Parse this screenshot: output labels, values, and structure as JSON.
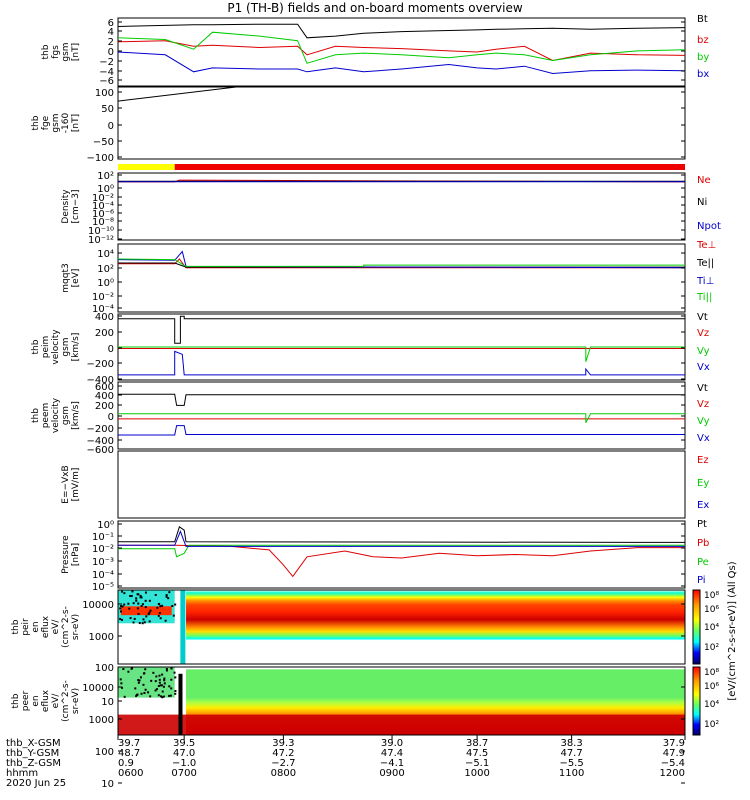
{
  "title": "P1  (TH-B) fields and on-board moments overview",
  "footer": {
    "rows": [
      {
        "label": "thb_X-GSM",
        "values": [
          "39.7",
          "39.5",
          "39.3",
          "39.0",
          "38.7",
          "38.3",
          "37.9"
        ]
      },
      {
        "label": "thb_Y-GSM",
        "values": [
          "48.7",
          "47.0",
          "47.2",
          "47.4",
          "47.5",
          "47.7",
          "47.9"
        ]
      },
      {
        "label": "thb_Z-GSM",
        "values": [
          "0.9",
          "−1.0",
          "−2.7",
          "−4.1",
          "−5.1",
          "−5.5",
          "−5.4"
        ]
      },
      {
        "label": "hhmm",
        "values": [
          "0600",
          "0700",
          "0800",
          "0900",
          "1000",
          "1100",
          "1200"
        ]
      }
    ],
    "date": "2020 Jun 25"
  },
  "chart_data": [
    {
      "type": "line",
      "ylabel": [
        "thb",
        "fgs",
        "gsm",
        "[nT]"
      ],
      "y_ticks": [
        "6",
        "4",
        "2",
        "0",
        "−2",
        "−4",
        "−6"
      ],
      "ylim": [
        -6,
        6
      ],
      "legend": [
        {
          "name": "Bt",
          "color": "#000000"
        },
        {
          "name": "bz",
          "color": "#dd0000"
        },
        {
          "name": "by",
          "color": "#00cc00"
        },
        {
          "name": "bx",
          "color": "#0000cc"
        }
      ],
      "x": [
        6.0,
        6.5,
        6.8,
        7.0,
        7.5,
        7.9,
        8.0,
        8.3,
        8.6,
        9.0,
        9.5,
        9.8,
        10.0,
        10.3,
        10.6,
        11.0,
        11.5,
        12.0
      ],
      "series": [
        {
          "name": "Bt",
          "color": "#000000",
          "values": [
            4.5,
            4.7,
            4.8,
            4.8,
            4.9,
            4.9,
            2.5,
            2.8,
            3.3,
            3.6,
            3.8,
            3.9,
            4.0,
            4.1,
            4.2,
            4.0,
            4.2,
            4.3
          ]
        },
        {
          "name": "bz",
          "color": "#dd0000",
          "values": [
            1.8,
            2.0,
            1.0,
            1.2,
            0.8,
            1.0,
            -0.5,
            1.0,
            0.8,
            0.6,
            0.2,
            0.0,
            0.5,
            1.0,
            -1.5,
            -0.2,
            -0.5,
            -0.6
          ]
        },
        {
          "name": "by",
          "color": "#00cc00",
          "values": [
            2.5,
            2.2,
            0.5,
            3.5,
            2.8,
            2.0,
            -2.0,
            -0.5,
            -0.2,
            -0.5,
            -1.0,
            -0.5,
            -0.2,
            -0.5,
            -1.5,
            -0.5,
            0.2,
            0.4
          ]
        },
        {
          "name": "bx",
          "color": "#0000cc",
          "values": [
            0.0,
            -0.5,
            -3.5,
            -2.8,
            -3.0,
            -3.0,
            -3.5,
            -2.8,
            -3.5,
            -3.0,
            -2.2,
            -2.8,
            -3.0,
            -2.5,
            -3.8,
            -3.3,
            -3.2,
            -3.3
          ]
        }
      ]
    },
    {
      "type": "line",
      "ylabel": [
        "thb",
        "fge",
        "gsm",
        "-160",
        "[nT]"
      ],
      "y_ticks": [
        "100",
        "50",
        "0",
        "−50",
        "−100"
      ],
      "ylim": [
        -130,
        100
      ],
      "series": [
        {
          "color": "#000000",
          "x": [
            6.0,
            7.25
          ],
          "values": [
            55,
            100
          ]
        }
      ]
    },
    {
      "type": "bar",
      "segments": [
        {
          "x0": 6.0,
          "x1": 6.6,
          "color": "#ffff00"
        },
        {
          "x0": 6.6,
          "x1": 12.0,
          "color": "#ee0000"
        }
      ]
    },
    {
      "type": "line",
      "ylabel": [
        "Density",
        "[cm−3]"
      ],
      "y_ticks": [
        "10²",
        "10⁰",
        "10⁻²",
        "10⁻⁴",
        "10⁻⁶",
        "10⁻⁸",
        "10⁻¹⁰",
        "10⁻¹²"
      ],
      "ylim": [
        -13,
        2
      ],
      "log_scale": true,
      "legend": [
        {
          "name": "Ne",
          "color": "#dd0000"
        },
        {
          "name": "Ni",
          "color": "#000000"
        },
        {
          "name": "Npot",
          "color": "#0000cc"
        }
      ],
      "series": [
        {
          "name": "Ne",
          "color": "#dd0000",
          "x": [
            6.0,
            6.6,
            6.65,
            12.0
          ],
          "values": [
            0.0,
            0.0,
            0.4,
            0.0
          ]
        },
        {
          "name": "Ni",
          "color": "#000000",
          "x": [
            6.0,
            12.0
          ],
          "values": [
            0.15,
            0.15
          ]
        },
        {
          "name": "Npot",
          "color": "#0000cc",
          "x": [
            6.0,
            12.0
          ],
          "values": [
            0.05,
            0.05
          ]
        }
      ]
    },
    {
      "type": "line",
      "ylabel": [
        "mqqt3",
        "[eV]"
      ],
      "y_ticks": [
        "10⁴",
        "10²",
        "10⁰",
        "10⁻²",
        "10⁻⁴"
      ],
      "ylim": [
        -5.5,
        4.5
      ],
      "log_scale": true,
      "legend": [
        {
          "name": "Te⊥",
          "color": "#dd0000"
        },
        {
          "name": "Te||",
          "color": "#000000"
        },
        {
          "name": "Ti⊥",
          "color": "#0000cc"
        },
        {
          "name": "Ti||",
          "color": "#00cc00"
        }
      ],
      "series": [
        {
          "name": "Te⊥",
          "color": "#dd0000",
          "x": [
            6.0,
            6.6,
            6.65,
            6.72,
            12.0
          ],
          "values": [
            1.6,
            1.6,
            2.3,
            1.0,
            1.0
          ]
        },
        {
          "name": "Te||",
          "color": "#000000",
          "x": [
            6.0,
            6.6,
            6.72,
            12.0
          ],
          "values": [
            1.7,
            1.7,
            1.1,
            1.1
          ]
        },
        {
          "name": "Ti⊥",
          "color": "#0000cc",
          "x": [
            6.0,
            6.6,
            6.68,
            6.72,
            12.0
          ],
          "values": [
            2.2,
            2.1,
            3.4,
            1.2,
            1.0
          ]
        },
        {
          "name": "Ti||",
          "color": "#00cc00",
          "x": [
            6.0,
            6.6,
            6.72,
            8.6,
            8.6,
            12.0
          ],
          "values": [
            2.3,
            2.2,
            1.2,
            1.2,
            1.4,
            1.4
          ]
        }
      ]
    },
    {
      "type": "line",
      "ylabel": [
        "thb",
        "peim",
        "velocity",
        "gsm",
        "[km/s]"
      ],
      "y_ticks": [
        "400",
        "200",
        "0",
        "−200",
        "−400"
      ],
      "ylim": [
        -450,
        450
      ],
      "legend": [
        {
          "name": "Vt",
          "color": "#000000"
        },
        {
          "name": "Vz",
          "color": "#dd0000"
        },
        {
          "name": "Vy",
          "color": "#00cc00"
        },
        {
          "name": "Vx",
          "color": "#0000cc"
        }
      ],
      "series": [
        {
          "name": "Vt",
          "color": "#000000",
          "x": [
            6.0,
            6.6,
            6.6,
            6.66,
            6.66,
            6.7,
            6.7,
            12.0
          ],
          "values": [
            385,
            385,
            50,
            50,
            420,
            420,
            385,
            385
          ]
        },
        {
          "name": "Vz",
          "color": "#dd0000",
          "x": [
            6.0,
            12.0
          ],
          "values": [
            -20,
            -20
          ]
        },
        {
          "name": "Vy",
          "color": "#00cc00",
          "x": [
            6.0,
            10.95,
            10.95,
            11.0,
            12.0
          ],
          "values": [
            0,
            0,
            -200,
            0,
            0
          ]
        },
        {
          "name": "Vx",
          "color": "#0000cc",
          "x": [
            6.0,
            6.6,
            6.6,
            6.68,
            6.7,
            10.95,
            10.95,
            11.0,
            12.0
          ],
          "values": [
            -380,
            -380,
            -60,
            -100,
            -380,
            -380,
            -300,
            -380,
            -380
          ]
        }
      ]
    },
    {
      "type": "line",
      "ylabel": [
        "thb",
        "peem",
        "velocity",
        "gsm",
        "[km/s]"
      ],
      "y_ticks": [
        "600",
        "400",
        "200",
        "0",
        "−200",
        "−400",
        "−600"
      ],
      "ylim": [
        -600,
        600
      ],
      "legend": [
        {
          "name": "Vt",
          "color": "#000000"
        },
        {
          "name": "Vz",
          "color": "#dd0000"
        },
        {
          "name": "Vy",
          "color": "#00cc00"
        },
        {
          "name": "Vx",
          "color": "#0000cc"
        }
      ],
      "series": [
        {
          "name": "Vt",
          "color": "#000000",
          "x": [
            6.0,
            6.6,
            6.62,
            6.7,
            6.72,
            12.0
          ],
          "values": [
            380,
            380,
            180,
            180,
            370,
            370
          ]
        },
        {
          "name": "Vz",
          "color": "#dd0000",
          "x": [
            6.0,
            12.0
          ],
          "values": [
            -60,
            -60
          ]
        },
        {
          "name": "Vy",
          "color": "#00cc00",
          "x": [
            6.0,
            10.95,
            10.95,
            11.0,
            12.0
          ],
          "values": [
            30,
            30,
            -130,
            30,
            30
          ]
        },
        {
          "name": "Vx",
          "color": "#0000cc",
          "x": [
            6.0,
            6.6,
            6.62,
            6.7,
            6.72,
            12.0
          ],
          "values": [
            -350,
            -350,
            -180,
            -180,
            -340,
            -340
          ]
        }
      ]
    },
    {
      "type": "line",
      "ylabel": [
        "E=−VxB",
        "[mV/m]"
      ],
      "y_ticks": [],
      "legend": [
        {
          "name": "Ez",
          "color": "#dd0000"
        },
        {
          "name": "Ey",
          "color": "#00cc00"
        },
        {
          "name": "Ex",
          "color": "#0000cc"
        }
      ],
      "series": []
    },
    {
      "type": "line",
      "ylabel": [
        "Pressure",
        "[nPa]"
      ],
      "y_ticks": [
        "10⁰",
        "10⁻¹",
        "10⁻²",
        "10⁻³",
        "10⁻⁴",
        "10⁻⁵"
      ],
      "ylim": [
        -5.5,
        0.3
      ],
      "log_scale": true,
      "legend": [
        {
          "name": "Pt",
          "color": "#000000"
        },
        {
          "name": "Pb",
          "color": "#dd0000"
        },
        {
          "name": "Pe",
          "color": "#00cc00"
        },
        {
          "name": "Pi",
          "color": "#0000cc"
        }
      ],
      "series": [
        {
          "name": "Pt",
          "color": "#000000",
          "x": [
            6.0,
            6.6,
            6.65,
            6.7,
            6.72,
            12.0
          ],
          "values": [
            -1.5,
            -1.5,
            -0.2,
            -0.5,
            -1.5,
            -1.55
          ]
        },
        {
          "name": "Pb",
          "color": "#dd0000",
          "x": [
            6.0,
            6.6,
            7.2,
            7.6,
            7.75,
            7.85,
            8.0,
            8.4,
            8.7,
            9.0,
            9.4,
            9.8,
            10.2,
            10.6,
            11.0,
            11.5,
            12.0
          ],
          "values": [
            -1.8,
            -1.8,
            -1.9,
            -2.2,
            -3.5,
            -4.5,
            -2.8,
            -2.3,
            -2.8,
            -2.9,
            -2.5,
            -2.7,
            -2.6,
            -2.7,
            -2.3,
            -2.0,
            -2.0
          ]
        },
        {
          "name": "Pe",
          "color": "#00cc00",
          "x": [
            6.0,
            6.6,
            6.62,
            6.7,
            6.75,
            12.0
          ],
          "values": [
            -2.1,
            -2.1,
            -2.8,
            -2.5,
            -1.8,
            -1.8
          ]
        },
        {
          "name": "Pi",
          "color": "#0000cc",
          "x": [
            6.0,
            6.6,
            6.66,
            6.72,
            12.0
          ],
          "values": [
            -1.8,
            -1.8,
            -0.6,
            -1.9,
            -1.9
          ]
        }
      ]
    },
    {
      "type": "heatmap",
      "ylabel": [
        "thb",
        "peir",
        "en",
        "eflux",
        "eV/",
        "(cm^2-s-",
        "sr-eV)"
      ],
      "y_ticks": [
        "10000",
        "1000",
        "100",
        "10"
      ],
      "ylim": [
        0.5,
        4.3
      ],
      "log_scale": true,
      "colorbar_label": "[eV/(cm^2-s-sr-eV)] (All Qs)",
      "colorbar_ticks": [
        "10⁸",
        "10⁶",
        "10⁴",
        "10²"
      ]
    },
    {
      "type": "heatmap",
      "ylabel": [
        "thb",
        "peer",
        "en",
        "eflux",
        "eV/",
        "(cm^2-s-",
        "sr-eV)"
      ],
      "y_ticks": [
        "10000",
        "1000",
        "100",
        "10"
      ],
      "ylim": [
        0.8,
        4.5
      ],
      "log_scale": true,
      "colorbar_label": "[eV/(cm^2-s-sr-eV)] (All Qs)",
      "colorbar_ticks": [
        "10⁸",
        "10⁶",
        "10⁴",
        "10²"
      ]
    }
  ]
}
